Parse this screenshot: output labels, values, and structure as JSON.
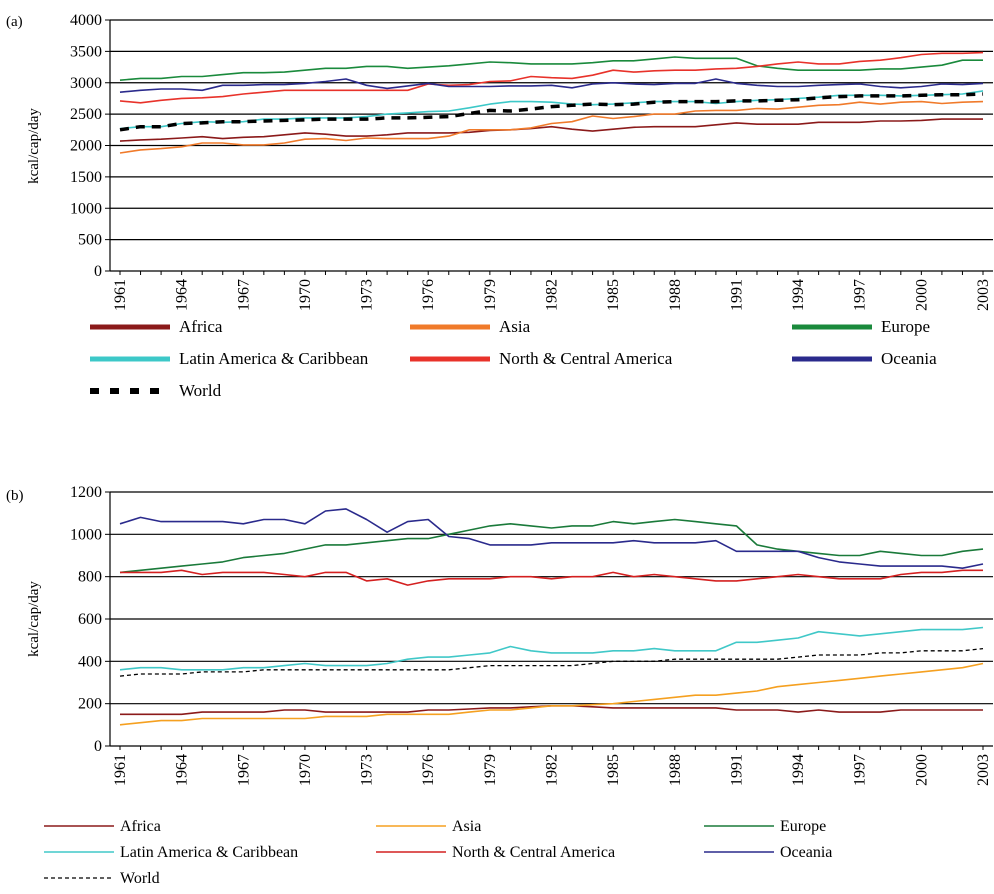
{
  "chart_data": [
    {
      "panel": "(a)",
      "type": "line",
      "ylabel": "kcal/cap/day",
      "ylim": [
        0,
        4000
      ],
      "yticks": [
        0,
        500,
        1000,
        1500,
        2000,
        2500,
        3000,
        3500,
        4000
      ],
      "x": [
        1961,
        1962,
        1963,
        1964,
        1965,
        1966,
        1967,
        1968,
        1969,
        1970,
        1971,
        1972,
        1973,
        1974,
        1975,
        1976,
        1977,
        1978,
        1979,
        1980,
        1981,
        1982,
        1983,
        1984,
        1985,
        1986,
        1987,
        1988,
        1989,
        1990,
        1991,
        1992,
        1993,
        1994,
        1995,
        1996,
        1997,
        1998,
        1999,
        2000,
        2001,
        2002,
        2003
      ],
      "xticks": [
        "1961",
        "1964",
        "1967",
        "1970",
        "1973",
        "1976",
        "1979",
        "1982",
        "1985",
        "1988",
        "1991",
        "1994",
        "1997",
        "2000",
        "2003"
      ],
      "grid": "horizontal",
      "legend_position": "bottom",
      "series": [
        {
          "name": "Africa",
          "color": "#8b1a1a",
          "dash": "solid",
          "values": [
            2070,
            2090,
            2100,
            2120,
            2140,
            2110,
            2130,
            2140,
            2170,
            2200,
            2180,
            2150,
            2150,
            2170,
            2200,
            2200,
            2200,
            2210,
            2240,
            2250,
            2270,
            2300,
            2260,
            2230,
            2260,
            2290,
            2300,
            2300,
            2300,
            2330,
            2360,
            2340,
            2340,
            2340,
            2370,
            2370,
            2370,
            2390,
            2390,
            2400,
            2420,
            2420,
            2420
          ]
        },
        {
          "name": "Asia",
          "color": "#f07a2a",
          "dash": "solid",
          "values": [
            1880,
            1930,
            1950,
            1980,
            2040,
            2040,
            2010,
            2010,
            2040,
            2100,
            2110,
            2080,
            2120,
            2110,
            2110,
            2110,
            2150,
            2250,
            2250,
            2250,
            2280,
            2350,
            2380,
            2470,
            2430,
            2460,
            2500,
            2500,
            2550,
            2560,
            2560,
            2590,
            2580,
            2610,
            2640,
            2650,
            2690,
            2660,
            2690,
            2700,
            2670,
            2690,
            2700
          ]
        },
        {
          "name": "Europe",
          "color": "#1a8a3c",
          "dash": "solid",
          "values": [
            3040,
            3070,
            3070,
            3100,
            3100,
            3130,
            3160,
            3160,
            3170,
            3200,
            3230,
            3230,
            3260,
            3260,
            3230,
            3250,
            3270,
            3300,
            3330,
            3320,
            3300,
            3300,
            3300,
            3320,
            3350,
            3350,
            3380,
            3410,
            3390,
            3390,
            3390,
            3270,
            3230,
            3200,
            3200,
            3200,
            3200,
            3220,
            3220,
            3250,
            3280,
            3360,
            3360
          ]
        },
        {
          "name": "Latin America & Caribbean",
          "color": "#3cc8c8",
          "dash": "solid",
          "values": [
            2270,
            2300,
            2300,
            2350,
            2380,
            2370,
            2380,
            2420,
            2420,
            2440,
            2440,
            2440,
            2460,
            2500,
            2520,
            2540,
            2550,
            2600,
            2660,
            2700,
            2700,
            2690,
            2660,
            2650,
            2660,
            2680,
            2700,
            2700,
            2700,
            2670,
            2700,
            2720,
            2730,
            2750,
            2770,
            2800,
            2800,
            2800,
            2790,
            2800,
            2810,
            2820,
            2870
          ]
        },
        {
          "name": "North & Central America",
          "color": "#e8322a",
          "dash": "solid",
          "values": [
            2710,
            2680,
            2720,
            2750,
            2760,
            2780,
            2820,
            2850,
            2880,
            2880,
            2880,
            2880,
            2880,
            2880,
            2880,
            2980,
            2960,
            2970,
            3020,
            3030,
            3100,
            3080,
            3070,
            3120,
            3200,
            3170,
            3190,
            3200,
            3200,
            3220,
            3230,
            3260,
            3300,
            3330,
            3300,
            3300,
            3340,
            3360,
            3400,
            3450,
            3470,
            3470,
            3480
          ]
        },
        {
          "name": "Oceania",
          "color": "#2a2a8c",
          "dash": "solid",
          "values": [
            2850,
            2880,
            2900,
            2900,
            2880,
            2960,
            2960,
            2970,
            2970,
            2990,
            3020,
            3060,
            2960,
            2910,
            2950,
            2990,
            2940,
            2940,
            2940,
            2950,
            2950,
            2960,
            2920,
            2980,
            3000,
            2980,
            2970,
            2990,
            2990,
            3060,
            2990,
            2960,
            2940,
            2940,
            2960,
            2970,
            2980,
            2940,
            2920,
            2940,
            2980,
            2970,
            2990
          ]
        },
        {
          "name": "World",
          "color": "#000000",
          "dash": "thick-dash",
          "values": [
            2250,
            2300,
            2300,
            2350,
            2360,
            2380,
            2380,
            2390,
            2400,
            2410,
            2420,
            2420,
            2420,
            2440,
            2440,
            2450,
            2460,
            2510,
            2560,
            2550,
            2580,
            2620,
            2640,
            2660,
            2650,
            2660,
            2690,
            2700,
            2700,
            2700,
            2710,
            2710,
            2720,
            2730,
            2760,
            2780,
            2790,
            2790,
            2790,
            2800,
            2810,
            2810,
            2820
          ]
        }
      ]
    },
    {
      "panel": "(b)",
      "type": "line",
      "ylabel": "kcal/cap/day",
      "ylim": [
        0,
        1200
      ],
      "yticks": [
        0,
        200,
        400,
        600,
        800,
        1000,
        1200
      ],
      "x": [
        1961,
        1962,
        1963,
        1964,
        1965,
        1966,
        1967,
        1968,
        1969,
        1970,
        1971,
        1972,
        1973,
        1974,
        1975,
        1976,
        1977,
        1978,
        1979,
        1980,
        1981,
        1982,
        1983,
        1984,
        1985,
        1986,
        1987,
        1988,
        1989,
        1990,
        1991,
        1992,
        1993,
        1994,
        1995,
        1996,
        1997,
        1998,
        1999,
        2000,
        2001,
        2002,
        2003
      ],
      "xticks": [
        "1961",
        "1964",
        "1967",
        "1970",
        "1973",
        "1976",
        "1979",
        "1982",
        "1985",
        "1988",
        "1991",
        "1994",
        "1997",
        "2000",
        "2003"
      ],
      "grid": "horizontal",
      "legend_position": "bottom",
      "series": [
        {
          "name": "Africa",
          "color": "#8b1a1a",
          "dash": "solid",
          "values": [
            150,
            150,
            150,
            150,
            160,
            160,
            160,
            160,
            170,
            170,
            160,
            160,
            160,
            160,
            160,
            170,
            170,
            175,
            180,
            180,
            185,
            190,
            190,
            185,
            180,
            180,
            180,
            180,
            180,
            180,
            170,
            170,
            170,
            160,
            170,
            160,
            160,
            160,
            170,
            170,
            170,
            170,
            170
          ]
        },
        {
          "name": "Asia",
          "color": "#f5a020",
          "dash": "solid",
          "values": [
            100,
            110,
            120,
            120,
            130,
            130,
            130,
            130,
            130,
            130,
            140,
            140,
            140,
            150,
            150,
            150,
            150,
            160,
            170,
            170,
            180,
            190,
            190,
            195,
            200,
            210,
            220,
            230,
            240,
            240,
            250,
            260,
            280,
            290,
            300,
            310,
            320,
            330,
            340,
            350,
            360,
            370,
            390
          ]
        },
        {
          "name": "Europe",
          "color": "#1a7a3a",
          "dash": "solid",
          "values": [
            820,
            830,
            840,
            850,
            860,
            870,
            890,
            900,
            910,
            930,
            950,
            950,
            960,
            970,
            980,
            980,
            1000,
            1020,
            1040,
            1050,
            1040,
            1030,
            1040,
            1040,
            1060,
            1050,
            1060,
            1070,
            1060,
            1050,
            1040,
            950,
            930,
            920,
            910,
            900,
            900,
            920,
            910,
            900,
            900,
            920,
            930
          ]
        },
        {
          "name": "Latin America & Caribbean",
          "color": "#40c8c8",
          "dash": "solid",
          "values": [
            360,
            370,
            370,
            360,
            360,
            360,
            370,
            370,
            380,
            390,
            380,
            380,
            380,
            390,
            410,
            420,
            420,
            430,
            440,
            470,
            450,
            440,
            440,
            440,
            450,
            450,
            460,
            450,
            450,
            450,
            490,
            490,
            500,
            510,
            540,
            530,
            520,
            530,
            540,
            550,
            550,
            550,
            560
          ]
        },
        {
          "name": "North & Central America",
          "color": "#d42020",
          "dash": "solid",
          "values": [
            820,
            820,
            820,
            830,
            810,
            820,
            820,
            820,
            810,
            800,
            820,
            820,
            780,
            790,
            760,
            780,
            790,
            790,
            790,
            800,
            800,
            790,
            800,
            800,
            820,
            800,
            810,
            800,
            790,
            780,
            780,
            790,
            800,
            810,
            800,
            790,
            790,
            790,
            810,
            820,
            820,
            830,
            830
          ]
        },
        {
          "name": "Oceania",
          "color": "#2a2a8c",
          "dash": "solid",
          "values": [
            1050,
            1080,
            1060,
            1060,
            1060,
            1060,
            1050,
            1070,
            1070,
            1050,
            1110,
            1120,
            1070,
            1010,
            1060,
            1070,
            990,
            980,
            950,
            950,
            950,
            960,
            960,
            960,
            960,
            970,
            960,
            960,
            960,
            970,
            920,
            920,
            920,
            920,
            890,
            870,
            860,
            850,
            850,
            850,
            850,
            840,
            860
          ]
        },
        {
          "name": "World",
          "color": "#000000",
          "dash": "thin-dash",
          "values": [
            330,
            340,
            340,
            340,
            350,
            350,
            350,
            360,
            360,
            360,
            360,
            360,
            360,
            360,
            360,
            360,
            360,
            370,
            380,
            380,
            380,
            380,
            380,
            390,
            400,
            400,
            400,
            410,
            410,
            410,
            410,
            410,
            410,
            420,
            430,
            430,
            430,
            440,
            440,
            450,
            450,
            450,
            460
          ]
        }
      ]
    }
  ]
}
